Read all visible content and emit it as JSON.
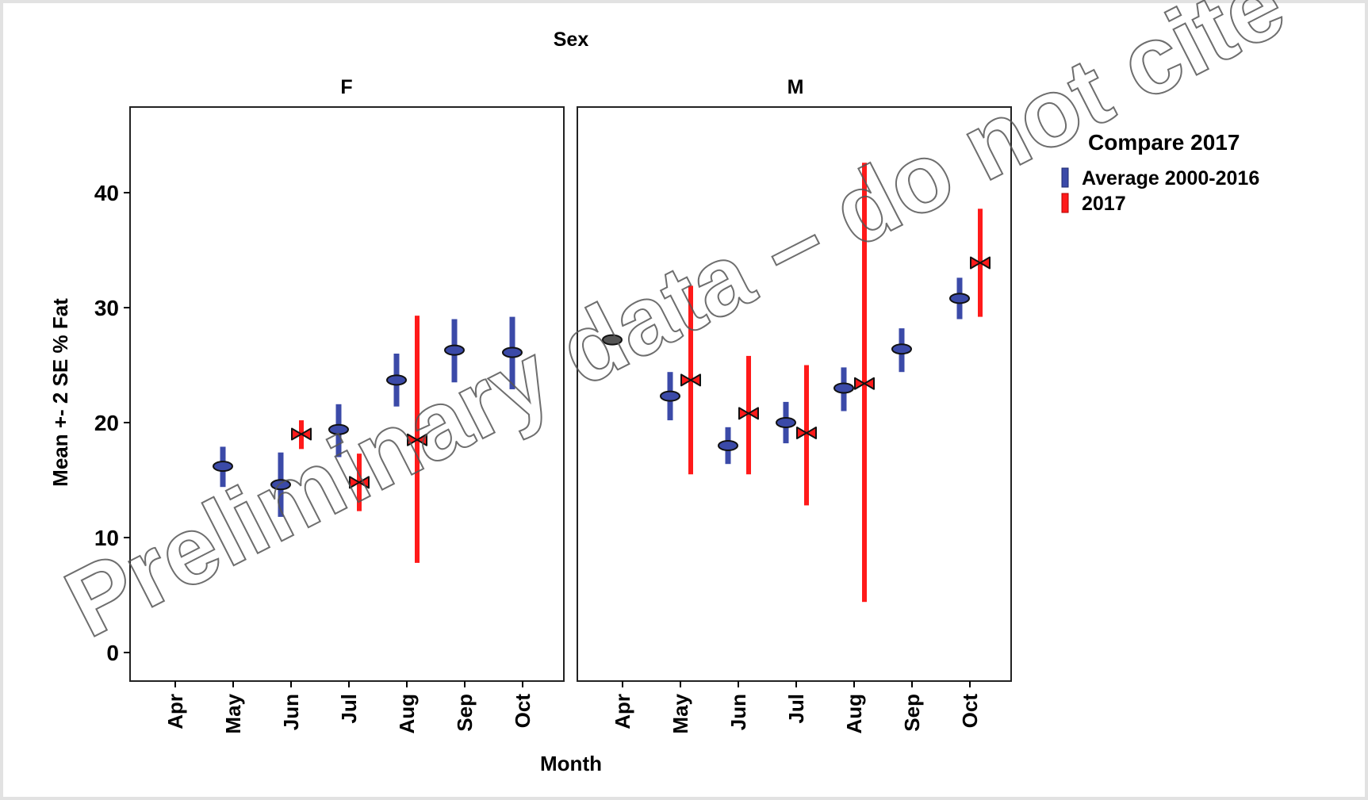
{
  "chart_data": {
    "type": "error-bar",
    "title": "Sex",
    "xlabel": "Month",
    "ylabel": "Mean +- 2 SE % Fat",
    "categories": [
      "Apr",
      "May",
      "Jun",
      "Jul",
      "Aug",
      "Sep",
      "Oct"
    ],
    "ylim": [
      0,
      47
    ],
    "yticks": [
      0,
      10,
      20,
      30,
      40
    ],
    "grid": false,
    "legend": {
      "title": "Compare 2017",
      "position": "right",
      "entries": [
        {
          "name": "Average 2000-2016",
          "color": "#3b4aa8"
        },
        {
          "name": "2017",
          "color": "#ff1a1a"
        }
      ]
    },
    "facets": [
      {
        "label": "F",
        "series": [
          {
            "name": "Average 2000-2016",
            "color": "#3b4aa8",
            "points": [
              {
                "month": "May",
                "mean": 16.2,
                "low": 14.4,
                "high": 17.9
              },
              {
                "month": "Jun",
                "mean": 14.6,
                "low": 11.8,
                "high": 17.4
              },
              {
                "month": "Jul",
                "mean": 19.4,
                "low": 17.0,
                "high": 21.6
              },
              {
                "month": "Aug",
                "mean": 23.7,
                "low": 21.4,
                "high": 26.0
              },
              {
                "month": "Sep",
                "mean": 26.3,
                "low": 23.5,
                "high": 29.0
              },
              {
                "month": "Oct",
                "mean": 26.1,
                "low": 22.9,
                "high": 29.2
              }
            ]
          },
          {
            "name": "2017",
            "color": "#ff1a1a",
            "points": [
              {
                "month": "Jun",
                "mean": 19.0,
                "low": 17.7,
                "high": 20.2
              },
              {
                "month": "Jul",
                "mean": 14.8,
                "low": 12.3,
                "high": 17.3
              },
              {
                "month": "Aug",
                "mean": 18.5,
                "low": 7.8,
                "high": 29.3
              }
            ]
          }
        ]
      },
      {
        "label": "M",
        "series": [
          {
            "name": "Average 2000-2016",
            "color": "#3b4aa8",
            "points": [
              {
                "month": "Apr",
                "mean": 27.2,
                "low": 27.2,
                "high": 27.2
              },
              {
                "month": "May",
                "mean": 22.3,
                "low": 20.2,
                "high": 24.4
              },
              {
                "month": "Jun",
                "mean": 18.0,
                "low": 16.4,
                "high": 19.6
              },
              {
                "month": "Jul",
                "mean": 20.0,
                "low": 18.2,
                "high": 21.8
              },
              {
                "month": "Aug",
                "mean": 23.0,
                "low": 21.0,
                "high": 24.8
              },
              {
                "month": "Sep",
                "mean": 26.4,
                "low": 24.4,
                "high": 28.2
              },
              {
                "month": "Oct",
                "mean": 30.8,
                "low": 29.0,
                "high": 32.6
              }
            ]
          },
          {
            "name": "2017",
            "color": "#ff1a1a",
            "points": [
              {
                "month": "May",
                "mean": 23.7,
                "low": 15.5,
                "high": 31.9
              },
              {
                "month": "Jun",
                "mean": 20.8,
                "low": 15.5,
                "high": 25.8
              },
              {
                "month": "Jul",
                "mean": 19.1,
                "low": 12.8,
                "high": 25.0
              },
              {
                "month": "Aug",
                "mean": 23.4,
                "low": 4.4,
                "high": 42.6
              },
              {
                "month": "Oct",
                "mean": 33.9,
                "low": 29.2,
                "high": 38.6
              }
            ]
          }
        ]
      }
    ]
  },
  "watermark": {
    "text": "Preliminary data – do not cite"
  }
}
